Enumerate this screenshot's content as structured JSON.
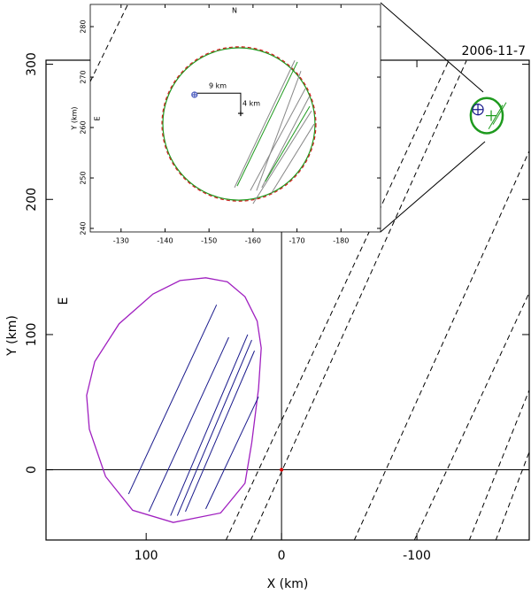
{
  "chart_data": [
    {
      "type": "line",
      "title": "2006-11-7",
      "xlabel": "X (km)",
      "ylabel": "Y (km)",
      "annotation": "E",
      "xlim": [
        174,
        -183
      ],
      "ylim": [
        -52,
        303
      ],
      "xticks": [
        100,
        0,
        -100
      ],
      "yticks": [
        0,
        100,
        200,
        300
      ],
      "series": [
        {
          "color": "#a020c0",
          "closed": true,
          "x": [
            56,
            40,
            27,
            18,
            15,
            17,
            22,
            27,
            45,
            80,
            110,
            130,
            142,
            144,
            138,
            120,
            95,
            75
          ],
          "y": [
            142,
            139,
            128,
            110,
            90,
            60,
            20,
            -10,
            -32,
            -39,
            -30,
            -5,
            30,
            55,
            80,
            108,
            130,
            140
          ]
        },
        {
          "color": "#1a1a8c",
          "x": [
            113,
            48
          ],
          "y": [
            -18,
            122
          ]
        },
        {
          "color": "#1a1a8c",
          "x": [
            98,
            39
          ],
          "y": [
            -31,
            98
          ]
        },
        {
          "color": "#1a1a8c",
          "x": [
            82,
            25
          ],
          "y": [
            -34,
            100
          ]
        },
        {
          "color": "#1a1a8c",
          "x": [
            77,
            22
          ],
          "y": [
            -34,
            96
          ]
        },
        {
          "color": "#1a1a8c",
          "x": [
            71,
            20
          ],
          "y": [
            -31,
            88
          ]
        },
        {
          "color": "#1a1a8c",
          "x": [
            56,
            17
          ],
          "y": [
            -29,
            54
          ]
        },
        {
          "color": "#000000",
          "dash": true,
          "x": [
            41.2,
            -123.5
          ],
          "y": [
            -52.4,
            302.6
          ]
        },
        {
          "color": "#000000",
          "dash": true,
          "x": [
            22.9,
            -136.6
          ],
          "y": [
            -52.4,
            302.6
          ]
        },
        {
          "color": "#000000",
          "dash": true,
          "x": [
            -53.6,
            -183
          ],
          "y": [
            -52.4,
            235.8
          ]
        },
        {
          "color": "#000000",
          "dash": true,
          "x": [
            -98,
            -183
          ],
          "y": [
            -52.4,
            131
          ]
        },
        {
          "color": "#000000",
          "dash": true,
          "x": [
            -138.6,
            -183
          ],
          "y": [
            -52.4,
            58.9
          ]
        },
        {
          "color": "#000000",
          "dash": true,
          "x": [
            -158.2,
            -183
          ],
          "y": [
            -52.4,
            13.1
          ]
        },
        {
          "color": "#1e9a1e",
          "x": [
            -156.2,
            -166
          ],
          "y": [
            255.4,
            271.7
          ]
        },
        {
          "color": "#1e9a1e",
          "x": [
            -153,
            -163.4
          ],
          "y": [
            252.1,
            269.8
          ]
        }
      ],
      "ellipses": [
        {
          "color": "#1e9a1e",
          "cx": -151.6,
          "cy": 262,
          "rx": 11.8,
          "ry": 13
        }
      ],
      "points": [
        {
          "color": "#1a1a8c",
          "symbol": "circle-cross",
          "x": -145.1,
          "y": 266.5
        },
        {
          "color": "#1e9a1e",
          "symbol": "plus",
          "x": -154.9,
          "y": 262
        },
        {
          "color": "#e00000",
          "symbol": "dot",
          "x": 0,
          "y": 0
        }
      ]
    },
    {
      "type": "line",
      "ylabel": "Y (km)",
      "annotations": [
        "N",
        "E",
        "9 km",
        "4 km"
      ],
      "xlim": [
        -123,
        -189
      ],
      "ylim": [
        239.3,
        284.4
      ],
      "xticks": [
        -130,
        -140,
        -150,
        -160,
        -170,
        -180
      ],
      "yticks": [
        240,
        250,
        260,
        270,
        280
      ],
      "series": [
        {
          "color": "#888888",
          "x": [
            -155.8,
            -169.5
          ],
          "y": [
            248.1,
            273.3
          ]
        },
        {
          "color": "#888888",
          "x": [
            -159.4,
            -171.9
          ],
          "y": [
            247.5,
            267.7
          ]
        },
        {
          "color": "#888888",
          "x": [
            -162,
            -172.9
          ],
          "y": [
            248.1,
            266.3
          ]
        },
        {
          "color": "#888888",
          "x": [
            -160,
            -173.3
          ],
          "y": [
            244.9,
            263.3
          ]
        },
        {
          "color": "#888888",
          "x": [
            -164.2,
            -173.9
          ],
          "y": [
            247,
            260.7
          ]
        },
        {
          "color": "#888888",
          "x": [
            -160.8,
            -170.9
          ],
          "y": [
            247.5,
            271.2
          ]
        },
        {
          "color": "#1e9a1e",
          "x": [
            -156.4,
            -170.1
          ],
          "y": [
            248.4,
            273
          ]
        },
        {
          "color": "#1e9a1e",
          "x": [
            -162.8,
            -172.9
          ],
          "y": [
            249.3,
            264.2
          ]
        },
        {
          "color": "#000000",
          "x": [
            -147.1,
            -157.2,
            -157.2
          ],
          "y": [
            266.8,
            266.8,
            263.3
          ]
        },
        {
          "color": "#000000",
          "dash": true,
          "x": [
            -123,
            -131.7
          ],
          "y": [
            269.1,
            284.7
          ]
        }
      ],
      "ellipses": [
        {
          "color": "#1e9a1e",
          "cx": -156.8,
          "cy": 260.7,
          "rx": 17.3,
          "ry": 15.1
        },
        {
          "color": "#d02020",
          "dash": true,
          "cx": -156.8,
          "cy": 260.7,
          "rx": 17.5,
          "ry": 15.3
        }
      ],
      "points": [
        {
          "color": "#5060c0",
          "symbol": "circle-cross",
          "x": -146.7,
          "y": 266.5
        },
        {
          "color": "#000000",
          "symbol": "plus",
          "x": -157.2,
          "y": 262.8
        }
      ]
    }
  ]
}
